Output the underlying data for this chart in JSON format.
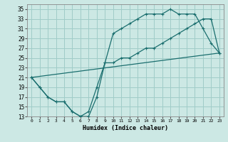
{
  "xlabel": "Humidex (Indice chaleur)",
  "bg_color": "#cce8e4",
  "grid_color": "#a0ccc8",
  "line_color": "#1a6e6e",
  "xlim": [
    -0.5,
    23.5
  ],
  "ylim": [
    13,
    36
  ],
  "xticks": [
    0,
    1,
    2,
    3,
    4,
    5,
    6,
    7,
    8,
    9,
    10,
    11,
    12,
    13,
    14,
    15,
    16,
    17,
    18,
    19,
    20,
    21,
    22,
    23
  ],
  "yticks": [
    13,
    15,
    17,
    19,
    21,
    23,
    25,
    27,
    29,
    31,
    33,
    35
  ],
  "series1_x": [
    0,
    1,
    2,
    3,
    4,
    5,
    6,
    7,
    8,
    9,
    10,
    11,
    12,
    13,
    14,
    15,
    16,
    17,
    18,
    19,
    20,
    21,
    22,
    23
  ],
  "series1_y": [
    21,
    19,
    17,
    16,
    16,
    14,
    13,
    13,
    17,
    24,
    30,
    31,
    32,
    33,
    34,
    34,
    34,
    35,
    34,
    34,
    34,
    31,
    28,
    26
  ],
  "series2_x": [
    0,
    1,
    2,
    3,
    4,
    5,
    6,
    7,
    8,
    9,
    10,
    11,
    12,
    13,
    14,
    15,
    16,
    17,
    18,
    19,
    20,
    21,
    22,
    23
  ],
  "series2_y": [
    21,
    19,
    17,
    16,
    16,
    14,
    13,
    14,
    19,
    24,
    24,
    25,
    25,
    26,
    27,
    27,
    28,
    29,
    30,
    31,
    32,
    33,
    33,
    26
  ],
  "series3_x": [
    0,
    23
  ],
  "series3_y": [
    21,
    26
  ]
}
